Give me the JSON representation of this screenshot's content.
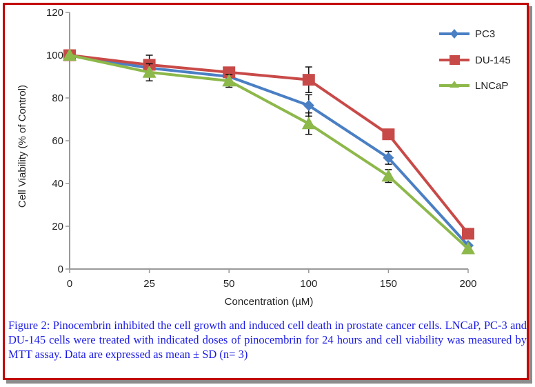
{
  "chart_data": {
    "type": "line",
    "title": "",
    "xlabel": "Concentration (µM)",
    "ylabel": "Cell Viability (% of Control)",
    "x": [
      0,
      25,
      50,
      100,
      150,
      200
    ],
    "x_tick_labels": [
      "0",
      "25",
      "50",
      "100",
      "150",
      "200"
    ],
    "x_scale": "categorical-evenly-spaced",
    "ylim": [
      0,
      120
    ],
    "y_ticks": [
      0,
      20,
      40,
      60,
      80,
      100,
      120
    ],
    "grid": false,
    "legend_position": "top-right",
    "series": [
      {
        "name": "PC3",
        "color": "#4a7fc4",
        "marker": "diamond",
        "values": [
          100,
          94,
          90,
          76.5,
          52,
          11
        ],
        "error": [
          0,
          2,
          2,
          5,
          3,
          0
        ]
      },
      {
        "name": "DU-145",
        "color": "#c84a48",
        "marker": "square",
        "values": [
          100,
          95.5,
          92,
          88.5,
          63,
          16.5
        ],
        "error": [
          0,
          4.5,
          0,
          6,
          0,
          0
        ]
      },
      {
        "name": "LNCaP",
        "color": "#8db84a",
        "marker": "triangle",
        "values": [
          100,
          92,
          88,
          68,
          43.5,
          9.5
        ],
        "error": [
          0,
          4,
          3,
          5,
          3,
          0
        ]
      }
    ]
  },
  "caption": "Figure 2: Pinocembrin inhibited the cell growth and induced cell death in prostate cancer cells. LNCaP, PC-3 and DU-145 cells were treated with indicated doses of pinocembrin for 24 hours and cell viability was measured by MTT assay. Data are expressed as mean ± SD (n= 3)",
  "colors": {
    "frame_border": "#c00000",
    "caption_text": "#1a1ae6",
    "axis": "#999999"
  }
}
